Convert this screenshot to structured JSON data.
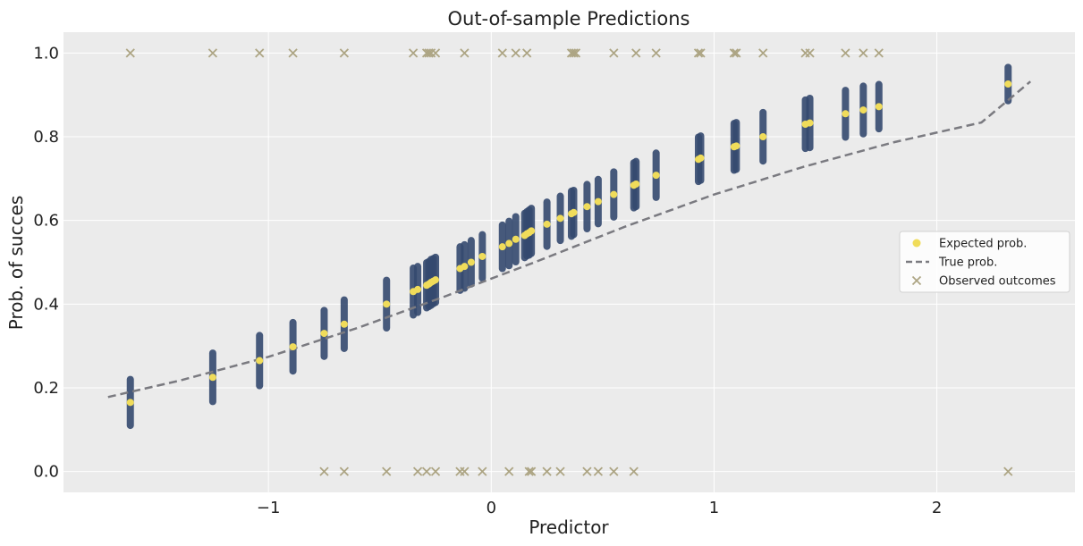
{
  "chart_data": {
    "type": "scatter",
    "title": "Out-of-sample Predictions",
    "xlabel": "Predictor",
    "ylabel": "Prob. of succes",
    "xlim": [
      -1.92,
      2.62
    ],
    "ylim": [
      -0.05,
      1.05
    ],
    "xticks": [
      -1,
      0,
      1,
      2
    ],
    "xtick_labels": [
      "−1",
      "0",
      "1",
      "2"
    ],
    "yticks": [
      0.0,
      0.2,
      0.4,
      0.6,
      0.8,
      1.0
    ],
    "ytick_labels": [
      "0.0",
      "0.2",
      "0.4",
      "0.6",
      "0.8",
      "1.0"
    ],
    "grid": true,
    "legend_position": "center-right",
    "legend": [
      {
        "label": "Expected prob.",
        "marker": "dot",
        "color": "#f0dc5a"
      },
      {
        "label": "True prob.",
        "marker": "dashed-line",
        "color": "#7a7a80"
      },
      {
        "label": "Observed outcomes",
        "marker": "x",
        "color": "#ada584"
      }
    ],
    "colors": {
      "background": "#ebebeb",
      "interval": "#34496f",
      "interval_dark": "#0f2a55",
      "expected": "#f0dc5a",
      "true_line": "#7a7a80",
      "observed": "#ada584"
    },
    "true_prob_curve": {
      "x": [
        -1.72,
        -1.4,
        -1.0,
        -0.6,
        -0.2,
        0.0,
        0.2,
        0.6,
        1.0,
        1.4,
        1.8,
        2.2,
        2.42
      ],
      "y": [
        0.178,
        0.217,
        0.274,
        0.343,
        0.42,
        0.461,
        0.501,
        0.585,
        0.662,
        0.728,
        0.786,
        0.834,
        0.932
      ]
    },
    "expected_prob": {
      "x": [
        -1.62,
        -1.25,
        -1.04,
        -0.89,
        -0.75,
        -0.66,
        -0.47,
        -0.35,
        -0.33,
        -0.29,
        -0.28,
        -0.27,
        -0.26,
        -0.25,
        -0.14,
        -0.12,
        -0.09,
        -0.04,
        0.05,
        0.08,
        0.11,
        0.15,
        0.16,
        0.17,
        0.18,
        0.25,
        0.31,
        0.36,
        0.37,
        0.43,
        0.48,
        0.55,
        0.64,
        0.65,
        0.74,
        0.93,
        0.94,
        1.09,
        1.1,
        1.22,
        1.41,
        1.43,
        1.59,
        1.67,
        1.74,
        2.32
      ],
      "y": [
        0.165,
        0.225,
        0.265,
        0.298,
        0.33,
        0.352,
        0.4,
        0.43,
        0.435,
        0.445,
        0.448,
        0.452,
        0.455,
        0.458,
        0.485,
        0.49,
        0.5,
        0.514,
        0.537,
        0.545,
        0.555,
        0.564,
        0.568,
        0.571,
        0.575,
        0.591,
        0.605,
        0.616,
        0.619,
        0.633,
        0.645,
        0.662,
        0.684,
        0.687,
        0.708,
        0.746,
        0.749,
        0.776,
        0.778,
        0.8,
        0.83,
        0.833,
        0.855,
        0.864,
        0.872,
        0.926
      ]
    },
    "interval_half_width": {
      "x": [
        -1.62,
        -1.25,
        -1.04,
        -0.89,
        -0.75,
        -0.66,
        -0.47,
        -0.35,
        -0.33,
        -0.29,
        -0.28,
        -0.27,
        -0.26,
        -0.25,
        -0.14,
        -0.12,
        -0.09,
        -0.04,
        0.05,
        0.08,
        0.11,
        0.15,
        0.16,
        0.17,
        0.18,
        0.25,
        0.31,
        0.36,
        0.37,
        0.43,
        0.48,
        0.55,
        0.64,
        0.65,
        0.74,
        0.93,
        0.94,
        1.09,
        1.1,
        1.22,
        1.41,
        1.43,
        1.59,
        1.67,
        1.74,
        2.32
      ],
      "y": [
        0.055,
        0.058,
        0.06,
        0.058,
        0.055,
        0.058,
        0.057,
        0.056,
        0.055,
        0.054,
        0.054,
        0.055,
        0.054,
        0.054,
        0.052,
        0.052,
        0.052,
        0.052,
        0.052,
        0.053,
        0.054,
        0.053,
        0.053,
        0.054,
        0.054,
        0.053,
        0.053,
        0.054,
        0.053,
        0.053,
        0.053,
        0.054,
        0.054,
        0.054,
        0.053,
        0.053,
        0.053,
        0.056,
        0.056,
        0.058,
        0.058,
        0.059,
        0.056,
        0.057,
        0.053,
        0.04
      ]
    },
    "observed_success": {
      "x": [
        -1.62,
        -1.25,
        -1.04,
        -0.89,
        -0.66,
        -0.35,
        -0.29,
        -0.28,
        -0.27,
        -0.25,
        -0.12,
        0.05,
        0.11,
        0.16,
        0.36,
        0.37,
        0.38,
        0.55,
        0.65,
        0.74,
        0.93,
        0.94,
        1.09,
        1.1,
        1.22,
        1.41,
        1.43,
        1.59,
        1.67,
        1.74
      ],
      "y": [
        1,
        1,
        1,
        1,
        1,
        1,
        1,
        1,
        1,
        1,
        1,
        1,
        1,
        1,
        1,
        1,
        1,
        1,
        1,
        1,
        1,
        1,
        1,
        1,
        1,
        1,
        1,
        1,
        1,
        1
      ]
    },
    "observed_failure": {
      "x": [
        -0.75,
        -0.66,
        -0.47,
        -0.33,
        -0.29,
        -0.25,
        -0.14,
        -0.12,
        -0.04,
        0.08,
        0.17,
        0.18,
        0.25,
        0.31,
        0.43,
        0.48,
        0.55,
        0.64,
        2.32
      ],
      "y": [
        0,
        0,
        0,
        0,
        0,
        0,
        0,
        0,
        0,
        0,
        0,
        0,
        0,
        0,
        0,
        0,
        0,
        0,
        0
      ]
    }
  }
}
